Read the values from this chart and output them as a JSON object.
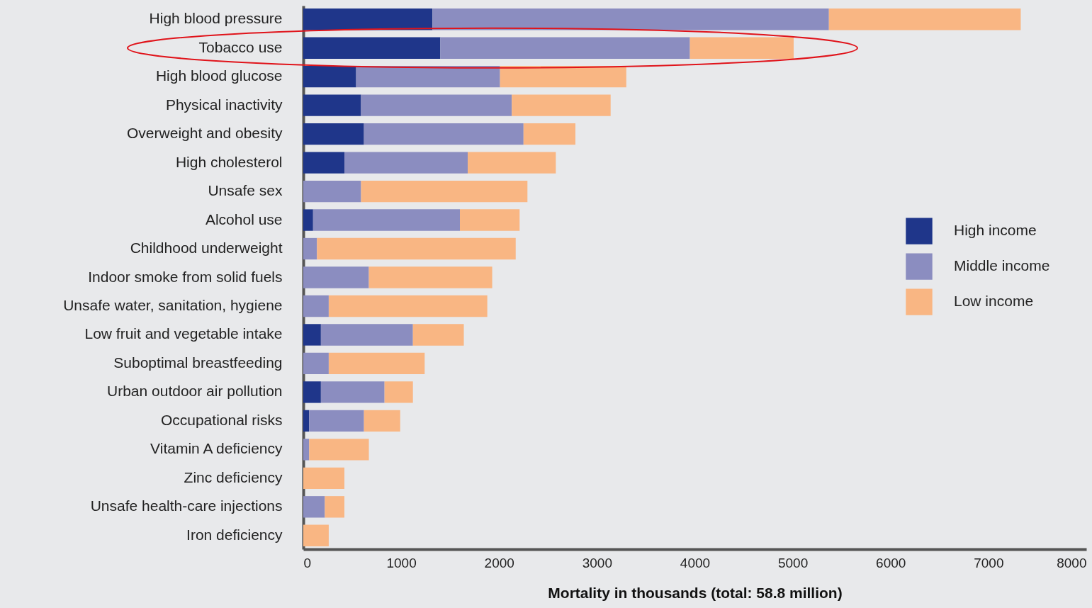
{
  "chart_data": {
    "type": "bar",
    "orientation": "horizontal",
    "stacked": true,
    "xlabel": "Mortality in thousands (total: 58.8 million)",
    "categories": [
      "High blood pressure",
      "Tobacco use",
      "High blood glucose",
      "Physical inactivity",
      "Overweight and obesity",
      "High cholesterol",
      "Unsafe sex",
      "Alcohol use",
      "Childhood underweight",
      "Indoor smoke from solid fuels",
      "Unsafe water, sanitation, hygiene",
      "Low fruit and vegetable intake",
      "Suboptimal breastfeeding",
      "Urban outdoor air pollution",
      "Occupational risks",
      "Vitamin A deficiency",
      "Zinc deficiency",
      "Unsafe health-care injections",
      "Iron deficiency"
    ],
    "series": [
      {
        "name": "High income",
        "color": "#1f368a",
        "values": [
          1320,
          1400,
          540,
          590,
          620,
          420,
          0,
          100,
          0,
          0,
          0,
          180,
          0,
          180,
          60,
          0,
          0,
          0,
          0
        ]
      },
      {
        "name": "Middle income",
        "color": "#8b8dc0",
        "values": [
          4050,
          2550,
          1470,
          1540,
          1630,
          1260,
          590,
          1500,
          140,
          670,
          260,
          940,
          260,
          650,
          560,
          60,
          0,
          220,
          0
        ]
      },
      {
        "name": "Low income",
        "color": "#f9b683",
        "values": [
          1960,
          1060,
          1290,
          1010,
          530,
          900,
          1700,
          610,
          2030,
          1260,
          1620,
          520,
          980,
          290,
          370,
          610,
          420,
          200,
          260
        ]
      }
    ],
    "xlim": [
      0,
      8000
    ],
    "xticks": [
      0,
      1000,
      2000,
      3000,
      4000,
      5000,
      6000,
      7000,
      8000
    ],
    "legend": "right",
    "grid": false
  }
}
